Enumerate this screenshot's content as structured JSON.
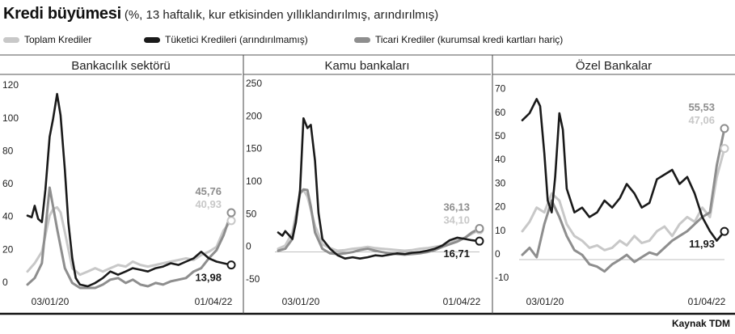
{
  "title": "Kredi büyümesi",
  "subtitle": "(%, 13 haftalık, kur etkisinden yıllıklandırılmış, arındırılmış)",
  "source": "Kaynak TDM",
  "colors": {
    "toplam": "#c8c8c8",
    "tuketici": "#1a1a1a",
    "ticari": "#8e8e8e"
  },
  "legend": [
    {
      "key": "toplam",
      "label": "Toplam Krediler"
    },
    {
      "key": "tuketici",
      "label": "Tüketici Kredileri (arındırılmamış)"
    },
    {
      "key": "ticari",
      "label": "Ticari Krediler (kurumsal kredi kartları hariç)"
    }
  ],
  "chart_data": [
    {
      "type": "line",
      "title": "Bankacılık sektörü",
      "ylim": [
        0,
        125
      ],
      "yticks": [
        0,
        20,
        40,
        60,
        80,
        100,
        120
      ],
      "xticks": [
        "03/01/20",
        "01/04/22"
      ],
      "series": [
        {
          "key": "toplam",
          "name": "Toplam Krediler",
          "x": [
            "2020-01-03",
            "2020-02-01",
            "2020-03-01",
            "2020-04-01",
            "2020-04-15",
            "2020-05-01",
            "2020-05-15",
            "2020-06-01",
            "2020-07-01",
            "2020-08-01",
            "2020-09-01",
            "2020-10-01",
            "2020-11-01",
            "2020-12-01",
            "2021-01-01",
            "2021-02-01",
            "2021-03-01",
            "2021-04-01",
            "2021-05-01",
            "2021-06-01",
            "2021-07-01",
            "2021-08-01",
            "2021-09-01",
            "2021-10-01",
            "2021-11-01",
            "2021-12-01",
            "2022-01-01",
            "2022-02-01",
            "2022-03-01",
            "2022-04-01"
          ],
          "values": [
            10,
            15,
            22,
            44,
            48,
            49,
            46,
            34,
            12,
            8,
            10,
            12,
            10,
            12,
            14,
            13,
            16,
            14,
            13,
            14,
            15,
            16,
            17,
            18,
            17,
            20,
            22,
            25,
            35,
            40.93
          ]
        },
        {
          "key": "tuketici",
          "name": "Tüketici Kredileri (arındırılmamış)",
          "x": [
            "2020-01-03",
            "2020-01-20",
            "2020-02-01",
            "2020-02-15",
            "2020-03-01",
            "2020-03-15",
            "2020-04-01",
            "2020-04-15",
            "2020-05-01",
            "2020-05-15",
            "2020-06-01",
            "2020-06-15",
            "2020-07-01",
            "2020-07-15",
            "2020-08-01",
            "2020-09-01",
            "2020-10-01",
            "2020-11-01",
            "2020-12-01",
            "2021-01-01",
            "2021-02-01",
            "2021-03-01",
            "2021-04-01",
            "2021-05-01",
            "2021-06-01",
            "2021-07-01",
            "2021-08-01",
            "2021-09-01",
            "2021-10-01",
            "2021-11-01",
            "2021-12-01",
            "2022-01-01",
            "2022-02-01",
            "2022-03-01",
            "2022-04-01"
          ],
          "values": [
            44,
            43,
            50,
            42,
            40,
            60,
            92,
            103,
            118,
            105,
            72,
            40,
            18,
            6,
            2,
            1,
            3,
            6,
            10,
            8,
            10,
            12,
            11,
            10,
            12,
            13,
            15,
            14,
            16,
            18,
            22,
            18,
            16,
            15,
            13.98
          ]
        },
        {
          "key": "ticari",
          "name": "Ticari Krediler (kurumsal kredi kartları hariç)",
          "x": [
            "2020-01-03",
            "2020-02-01",
            "2020-03-01",
            "2020-04-01",
            "2020-05-01",
            "2020-06-01",
            "2020-07-01",
            "2020-08-01",
            "2020-09-01",
            "2020-10-01",
            "2020-11-01",
            "2020-12-01",
            "2021-01-01",
            "2021-02-01",
            "2021-03-01",
            "2021-04-01",
            "2021-05-01",
            "2021-06-01",
            "2021-07-01",
            "2021-08-01",
            "2021-09-01",
            "2021-10-01",
            "2021-11-01",
            "2021-12-01",
            "2022-01-01",
            "2022-02-01",
            "2022-03-01",
            "2022-04-01"
          ],
          "values": [
            2,
            6,
            15,
            61,
            36,
            12,
            3,
            0,
            0,
            0,
            2,
            5,
            6,
            3,
            5,
            2,
            1,
            3,
            2,
            4,
            5,
            6,
            10,
            12,
            18,
            23,
            32,
            45.76
          ]
        }
      ],
      "end_labels": {
        "toplam": "40,93",
        "tuketici": "13,98",
        "ticari": "45,76"
      }
    },
    {
      "type": "line",
      "title": "Kamu bankaları",
      "ylim": [
        -55,
        260
      ],
      "yticks": [
        -50,
        0,
        50,
        100,
        150,
        200,
        250
      ],
      "xticks": [
        "03/01/20",
        "01/04/22"
      ],
      "series": [
        {
          "key": "toplam",
          "name": "Toplam Krediler",
          "x": [
            "2020-01-03",
            "2020-02-01",
            "2020-03-01",
            "2020-04-01",
            "2020-04-15",
            "2020-05-01",
            "2020-06-01",
            "2020-07-01",
            "2020-08-01",
            "2020-09-01",
            "2020-10-01",
            "2020-11-01",
            "2020-12-01",
            "2021-01-01",
            "2021-02-01",
            "2021-03-01",
            "2021-04-01",
            "2021-05-01",
            "2021-06-01",
            "2021-07-01",
            "2021-08-01",
            "2021-09-01",
            "2021-10-01",
            "2021-11-01",
            "2021-12-01",
            "2022-01-01",
            "2022-02-01",
            "2022-03-01",
            "2022-04-01"
          ],
          "values": [
            5,
            10,
            30,
            90,
            95,
            85,
            40,
            12,
            6,
            2,
            3,
            5,
            6,
            8,
            6,
            5,
            4,
            3,
            2,
            3,
            5,
            6,
            8,
            10,
            14,
            18,
            22,
            28,
            34.1
          ]
        },
        {
          "key": "tuketici",
          "name": "Tüketici Kredileri (arındırılmamış)",
          "x": [
            "2020-01-03",
            "2020-01-20",
            "2020-02-01",
            "2020-03-01",
            "2020-03-15",
            "2020-04-01",
            "2020-04-15",
            "2020-05-01",
            "2020-05-15",
            "2020-06-01",
            "2020-06-15",
            "2020-07-01",
            "2020-08-01",
            "2020-09-01",
            "2020-10-01",
            "2020-11-01",
            "2020-12-01",
            "2021-01-01",
            "2021-02-01",
            "2021-03-01",
            "2021-04-01",
            "2021-05-01",
            "2021-06-01",
            "2021-07-01",
            "2021-08-01",
            "2021-09-01",
            "2021-10-01",
            "2021-11-01",
            "2021-12-01",
            "2022-01-01",
            "2022-02-01",
            "2022-03-01",
            "2022-04-01"
          ],
          "values": [
            30,
            25,
            32,
            20,
            45,
            95,
            205,
            190,
            195,
            140,
            60,
            20,
            5,
            -5,
            -10,
            -8,
            -10,
            -8,
            -5,
            -6,
            -4,
            -2,
            -3,
            -1,
            0,
            2,
            5,
            10,
            18,
            22,
            20,
            18,
            16.71
          ]
        },
        {
          "key": "ticari",
          "name": "Ticari Krediler (kurumsal kredi kartları hariç)",
          "x": [
            "2020-01-03",
            "2020-02-01",
            "2020-03-01",
            "2020-04-01",
            "2020-04-15",
            "2020-05-01",
            "2020-05-15",
            "2020-06-01",
            "2020-07-01",
            "2020-08-01",
            "2020-09-01",
            "2020-10-01",
            "2020-11-01",
            "2020-12-01",
            "2021-01-01",
            "2021-02-01",
            "2021-03-01",
            "2021-04-01",
            "2021-05-01",
            "2021-06-01",
            "2021-07-01",
            "2021-08-01",
            "2021-09-01",
            "2021-10-01",
            "2021-11-01",
            "2021-12-01",
            "2022-01-01",
            "2022-02-01",
            "2022-03-01",
            "2022-04-01"
          ],
          "values": [
            2,
            5,
            20,
            90,
            96,
            95,
            70,
            30,
            5,
            -2,
            -3,
            -2,
            0,
            3,
            5,
            2,
            0,
            -2,
            -3,
            -4,
            -3,
            -2,
            0,
            3,
            8,
            12,
            16,
            22,
            30,
            36.13
          ]
        }
      ],
      "end_labels": {
        "toplam": "34,10",
        "tuketici": "16,71",
        "ticari": "36,13"
      }
    },
    {
      "type": "line",
      "title": "Özel Bankalar",
      "ylim": [
        -12,
        75
      ],
      "yticks": [
        -10,
        0,
        10,
        20,
        30,
        40,
        50,
        60,
        70
      ],
      "xticks": [
        "03/01/20",
        "01/04/22"
      ],
      "series": [
        {
          "key": "toplam",
          "name": "Toplam Krediler",
          "x": [
            "2020-01-03",
            "2020-02-01",
            "2020-03-01",
            "2020-04-01",
            "2020-05-01",
            "2020-06-01",
            "2020-07-01",
            "2020-08-01",
            "2020-09-01",
            "2020-10-01",
            "2020-11-01",
            "2020-12-01",
            "2021-01-01",
            "2021-02-01",
            "2021-03-01",
            "2021-04-01",
            "2021-05-01",
            "2021-06-01",
            "2021-07-01",
            "2021-08-01",
            "2021-09-01",
            "2021-10-01",
            "2021-11-01",
            "2021-12-01",
            "2022-01-01",
            "2022-02-01",
            "2022-03-01",
            "2022-04-01"
          ],
          "values": [
            12,
            16,
            22,
            20,
            28,
            25,
            15,
            10,
            8,
            5,
            6,
            4,
            5,
            8,
            6,
            10,
            7,
            8,
            12,
            14,
            10,
            15,
            18,
            16,
            22,
            18,
            35,
            47.06
          ]
        },
        {
          "key": "tuketici",
          "name": "Tüketici Kredileri (arındırılmamış)",
          "x": [
            "2020-01-03",
            "2020-02-01",
            "2020-03-01",
            "2020-03-15",
            "2020-04-01",
            "2020-04-15",
            "2020-05-01",
            "2020-05-15",
            "2020-06-01",
            "2020-06-15",
            "2020-07-01",
            "2020-08-01",
            "2020-09-01",
            "2020-10-01",
            "2020-11-01",
            "2020-12-01",
            "2021-01-01",
            "2021-02-01",
            "2021-03-01",
            "2021-04-01",
            "2021-05-01",
            "2021-06-01",
            "2021-07-01",
            "2021-08-01",
            "2021-09-01",
            "2021-10-01",
            "2021-11-01",
            "2021-12-01",
            "2022-01-01",
            "2022-02-01",
            "2022-03-01",
            "2022-04-01"
          ],
          "values": [
            59,
            62,
            68,
            65,
            45,
            25,
            20,
            35,
            62,
            55,
            30,
            20,
            22,
            18,
            20,
            25,
            22,
            26,
            32,
            28,
            22,
            24,
            34,
            36,
            38,
            32,
            35,
            28,
            18,
            12,
            8,
            11.93
          ]
        },
        {
          "key": "ticari",
          "name": "Ticari Krediler (kurumsal kredi kartları hariç)",
          "x": [
            "2020-01-03",
            "2020-02-01",
            "2020-03-01",
            "2020-04-01",
            "2020-05-01",
            "2020-06-01",
            "2020-07-01",
            "2020-08-01",
            "2020-09-01",
            "2020-10-01",
            "2020-11-01",
            "2020-12-01",
            "2021-01-01",
            "2021-02-01",
            "2021-03-01",
            "2021-04-01",
            "2021-05-01",
            "2021-06-01",
            "2021-07-01",
            "2021-08-01",
            "2021-09-01",
            "2021-10-01",
            "2021-11-01",
            "2021-12-01",
            "2022-01-01",
            "2022-02-01",
            "2022-03-01",
            "2022-04-01"
          ],
          "values": [
            2,
            5,
            1,
            15,
            25,
            18,
            10,
            4,
            2,
            -2,
            -3,
            -5,
            -2,
            0,
            2,
            -1,
            1,
            3,
            2,
            5,
            8,
            10,
            12,
            15,
            18,
            20,
            40,
            55.53
          ]
        }
      ],
      "end_labels": {
        "toplam": "47,06",
        "tuketici": "11,93",
        "ticari": "55,53"
      }
    }
  ]
}
